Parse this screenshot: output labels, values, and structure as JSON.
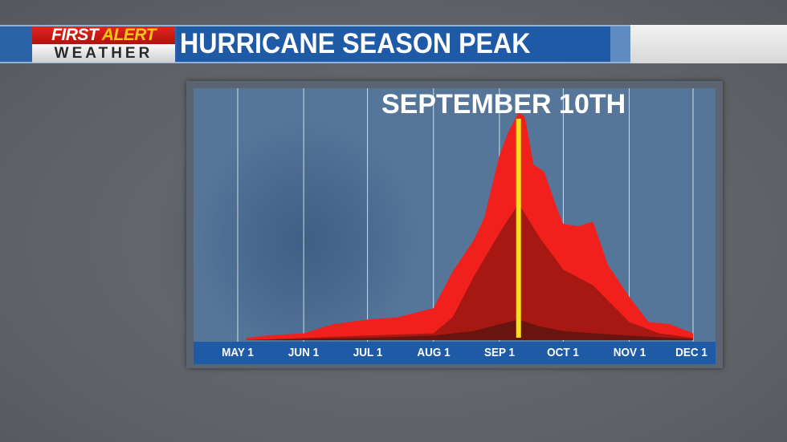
{
  "header": {
    "logo_line1_a": "FIRST",
    "logo_line1_b": "ALERT",
    "logo_line2": "WEATHER",
    "title": "HURRICANE SEASON PEAK"
  },
  "chart_data": {
    "type": "area",
    "title": "",
    "annotation": "SEPTEMBER 10TH",
    "peak_marker_date": "09-10",
    "peak_marker_color": "#f5e21a",
    "x_tick_labels": [
      "MAY 1",
      "JUN 1",
      "JUL 1",
      "AUG 1",
      "SEP 1",
      "OCT 1",
      "NOV 1",
      "DEC 1"
    ],
    "x_ticks": [
      "05-01",
      "06-01",
      "07-01",
      "08-01",
      "09-01",
      "10-01",
      "11-01",
      "12-01"
    ],
    "xlim": [
      "05-01",
      "12-01"
    ],
    "ylim": [
      0,
      100
    ],
    "y_axis_shown": false,
    "grid": "vertical",
    "series": [
      {
        "color": "#f2201c",
        "points": [
          [
            "05-05",
            1
          ],
          [
            "05-15",
            2
          ],
          [
            "06-01",
            3
          ],
          [
            "06-15",
            7
          ],
          [
            "07-01",
            9
          ],
          [
            "07-15",
            10
          ],
          [
            "08-01",
            14
          ],
          [
            "08-10",
            30
          ],
          [
            "08-20",
            44
          ],
          [
            "08-25",
            54
          ],
          [
            "09-01",
            81
          ],
          [
            "09-05",
            91
          ],
          [
            "09-10",
            100
          ],
          [
            "09-13",
            98
          ],
          [
            "09-17",
            77
          ],
          [
            "09-22",
            74
          ],
          [
            "09-28",
            58
          ],
          [
            "10-01",
            51
          ],
          [
            "10-08",
            50
          ],
          [
            "10-15",
            52
          ],
          [
            "10-22",
            33
          ],
          [
            "11-01",
            19
          ],
          [
            "11-10",
            8
          ],
          [
            "11-20",
            7
          ],
          [
            "12-01",
            3
          ]
        ]
      },
      {
        "color": "#a81812",
        "points": [
          [
            "05-05",
            0
          ],
          [
            "06-01",
            1
          ],
          [
            "07-01",
            2
          ],
          [
            "08-01",
            3
          ],
          [
            "08-10",
            10
          ],
          [
            "08-20",
            28
          ],
          [
            "09-01",
            47
          ],
          [
            "09-10",
            60
          ],
          [
            "09-20",
            45
          ],
          [
            "10-01",
            31
          ],
          [
            "10-15",
            24
          ],
          [
            "11-01",
            8
          ],
          [
            "11-15",
            3
          ],
          [
            "12-01",
            1
          ]
        ]
      },
      {
        "color": "#6a1410",
        "points": [
          [
            "05-05",
            0
          ],
          [
            "06-01",
            0.5
          ],
          [
            "07-01",
            1
          ],
          [
            "08-01",
            2
          ],
          [
            "08-20",
            4
          ],
          [
            "09-01",
            7
          ],
          [
            "09-10",
            9
          ],
          [
            "09-20",
            6
          ],
          [
            "10-01",
            4
          ],
          [
            "10-15",
            3
          ],
          [
            "11-01",
            2
          ],
          [
            "12-01",
            0.5
          ]
        ]
      }
    ]
  }
}
